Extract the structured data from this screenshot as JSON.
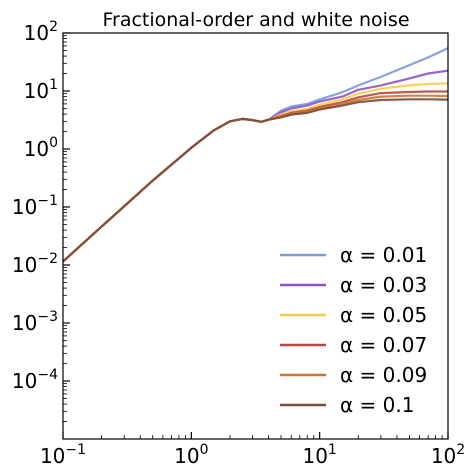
{
  "chart_data": {
    "type": "line",
    "title": "Fractional-order and white noise",
    "xlabel": "",
    "ylabel": "",
    "xscale": "log",
    "yscale": "log",
    "xlim": [
      0.1,
      100
    ],
    "ylim": [
      1e-05,
      100
    ],
    "xticks": [
      {
        "value": 0.1,
        "base": "10",
        "exp": "−1"
      },
      {
        "value": 1,
        "base": "10",
        "exp": "0"
      },
      {
        "value": 10,
        "base": "10",
        "exp": "1"
      },
      {
        "value": 100,
        "base": "10",
        "exp": "2"
      }
    ],
    "yticks": [
      {
        "value": 0.0001,
        "base": "10",
        "exp": "−4"
      },
      {
        "value": 0.001,
        "base": "10",
        "exp": "−3"
      },
      {
        "value": 0.01,
        "base": "10",
        "exp": "−2"
      },
      {
        "value": 0.1,
        "base": "10",
        "exp": "−1"
      },
      {
        "value": 1,
        "base": "10",
        "exp": "0"
      },
      {
        "value": 10,
        "base": "10",
        "exp": "1"
      },
      {
        "value": 100,
        "base": "10",
        "exp": "2"
      }
    ],
    "grid": false,
    "legend_position": "lower-right",
    "shared_x": [
      0.1,
      0.2,
      0.5,
      1,
      1.5,
      2,
      2.5,
      3,
      3.5,
      4,
      5,
      6,
      8,
      10,
      15,
      20,
      30,
      50,
      70,
      100
    ],
    "shared_y": [
      0.0115,
      0.046,
      0.285,
      1.05,
      2.1,
      3.0,
      3.3,
      3.15,
      2.95,
      3.2
    ],
    "series": [
      {
        "name": "α = 0.01",
        "color": "#7a9ad8",
        "x": [
          4,
          5,
          6,
          8,
          10,
          15,
          20,
          30,
          50,
          70,
          100
        ],
        "y": [
          3.2,
          4.6,
          5.4,
          6.0,
          7.2,
          9.5,
          12.5,
          17.5,
          28,
          38,
          55
        ]
      },
      {
        "name": "α = 0.03",
        "color": "#8a55c6",
        "x": [
          4,
          5,
          6,
          8,
          10,
          15,
          20,
          30,
          50,
          70,
          100
        ],
        "y": [
          3.2,
          4.3,
          5.0,
          5.6,
          6.6,
          8.0,
          10.5,
          12.5,
          16.5,
          20,
          22.5
        ]
      },
      {
        "name": "α = 0.05",
        "color": "#f8cc4a",
        "x": [
          4,
          5,
          6,
          8,
          10,
          15,
          20,
          30,
          50,
          70,
          100
        ],
        "y": [
          3.1,
          3.9,
          4.5,
          4.9,
          5.8,
          7.2,
          9.0,
          11,
          12.5,
          13.2,
          13.5
        ]
      },
      {
        "name": "α = 0.07",
        "color": "#b8483c",
        "x": [
          4,
          5,
          6,
          8,
          10,
          15,
          20,
          30,
          50,
          70,
          100
        ],
        "y": [
          3.05,
          3.7,
          4.2,
          4.6,
          5.3,
          6.4,
          7.8,
          9.2,
          9.6,
          9.8,
          9.8
        ]
      },
      {
        "name": "α = 0.09",
        "color": "#d4742a",
        "x": [
          4,
          5,
          6,
          8,
          10,
          15,
          20,
          30,
          50,
          70,
          100
        ],
        "y": [
          3.0,
          3.6,
          4.0,
          4.4,
          5.0,
          6.0,
          7.0,
          8.0,
          8.3,
          8.3,
          8.2
        ]
      },
      {
        "name": "α = 0.1",
        "color": "#7b4a3a",
        "x": [
          4,
          5,
          6,
          8,
          10,
          15,
          20,
          30,
          50,
          70,
          100
        ],
        "y": [
          3.0,
          3.5,
          3.9,
          4.2,
          4.8,
          5.6,
          6.4,
          7.0,
          7.2,
          7.2,
          7.1
        ]
      }
    ]
  }
}
